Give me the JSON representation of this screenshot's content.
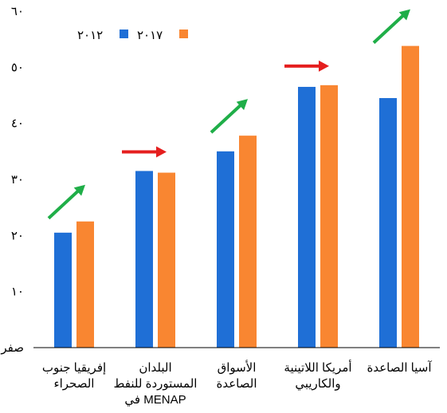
{
  "chart_data": {
    "type": "bar",
    "categories": [
      [
        "إفريقيا جنوب",
        "الصحراء"
      ],
      [
        "البلدان",
        "المستوردة للنفط",
        "في MENAP"
      ],
      [
        "الأسواق",
        "الصاعدة"
      ],
      [
        "أمريكا اللاتينية",
        "والكاريبي"
      ],
      [
        "آسيا الصاعدة"
      ]
    ],
    "series": [
      {
        "name": "٢٠١٢",
        "color": "#1f6fd6",
        "values": [
          20.5,
          31.5,
          35.0,
          46.5,
          44.5
        ]
      },
      {
        "name": "٢٠١٧",
        "color": "#f98631",
        "values": [
          22.5,
          31.2,
          37.8,
          46.8,
          53.8
        ]
      }
    ],
    "trend_arrows": [
      {
        "direction": "up",
        "color": "#1fae48"
      },
      {
        "direction": "flat",
        "color": "#e51e1e"
      },
      {
        "direction": "up",
        "color": "#1fae48"
      },
      {
        "direction": "flat",
        "color": "#e51e1e"
      },
      {
        "direction": "up",
        "color": "#1fae48"
      }
    ],
    "ylim": [
      0,
      60
    ],
    "yticks": [
      {
        "value": 0,
        "label": "صفر"
      },
      {
        "value": 10,
        "label": "١٠"
      },
      {
        "value": 20,
        "label": "٢٠"
      },
      {
        "value": 30,
        "label": "٣٠"
      },
      {
        "value": 40,
        "label": "٤٠"
      },
      {
        "value": 50,
        "label": "٥٠"
      },
      {
        "value": 60,
        "label": "٦٠"
      }
    ],
    "legend_position": "top-left",
    "grid": false
  }
}
